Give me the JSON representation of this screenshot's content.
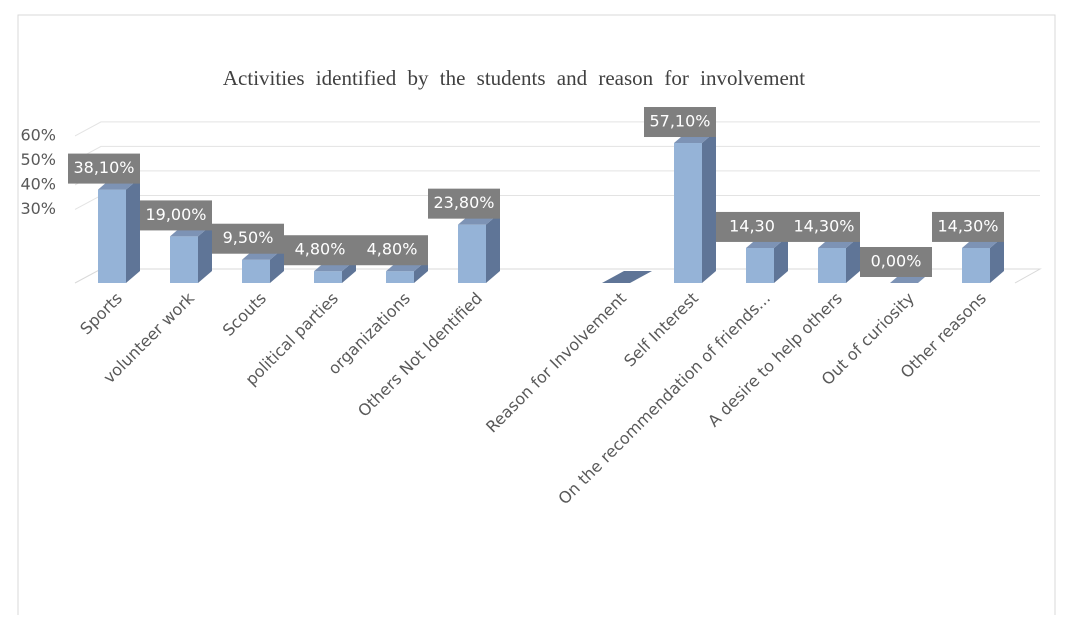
{
  "chart_data": {
    "type": "bar3d",
    "title": "Activities identified by the students and reason for involvement",
    "categories": [
      "Sports",
      "volunteer work",
      "Scouts",
      "political parties",
      "organizations",
      "Others Not Identified",
      "Reason for Involvement",
      "Self Interest",
      "On the recommendation of friends...",
      "A desire to help others",
      "Out of curiosity",
      "Other reasons"
    ],
    "values": [
      38.1,
      19.0,
      9.5,
      4.8,
      4.8,
      23.8,
      null,
      57.1,
      14.3,
      14.3,
      0,
      14.3
    ],
    "value_labels": [
      "38,10%",
      "19,00%",
      "9,50%",
      "4,80%",
      "4,80%",
      "23,80%",
      null,
      "57,10%",
      "14,30",
      "14,30%",
      "0,00%",
      "14,30%"
    ],
    "color": "#95b3d7",
    "ylim": [
      0,
      62
    ],
    "yticks": [
      {
        "value": 30,
        "label": "30%"
      },
      {
        "value": 40,
        "label": "40%"
      },
      {
        "value": 50,
        "label": "50%"
      },
      {
        "value": 60,
        "label": "60%"
      }
    ],
    "grid": true
  }
}
